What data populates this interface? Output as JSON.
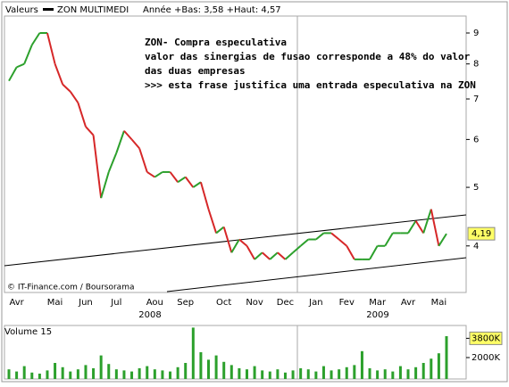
{
  "header": {
    "label": "Valeurs",
    "symbol": "ZON MULTIMEDI",
    "range": "Année +Bas: 3,58 +Haut: 4,57"
  },
  "annotation": [
    "ZON-  Compra especulativa",
    "valor das sinergias de fusao corresponde a 48% do valor",
    "das duas empresas",
    ">>> esta frase justifica uma entrada especulativa na ZON"
  ],
  "credit": "© IT-Finance.com / Boursorama",
  "chart_data": [
    {
      "type": "line",
      "log": true,
      "categories": [
        null,
        "Avr",
        null,
        null,
        null,
        null,
        "Mai",
        null,
        null,
        null,
        "Jun",
        null,
        null,
        null,
        "Jul",
        null,
        null,
        null,
        null,
        "Aou",
        null,
        null,
        null,
        "Sep",
        null,
        null,
        null,
        null,
        "Oct",
        null,
        null,
        null,
        "Nov",
        null,
        null,
        null,
        "Dec",
        null,
        null,
        null,
        "Jan",
        null,
        null,
        null,
        "Fev",
        null,
        null,
        null,
        "Mar",
        null,
        null,
        null,
        "Avr",
        null,
        null,
        null,
        "Mai",
        null
      ],
      "x_group_labels": [
        "2008",
        "2009"
      ],
      "series": [
        {
          "name": "ZON MULTIMEDI",
          "values": [
            7.5,
            7.9,
            8.0,
            8.6,
            9.0,
            9.0,
            8.0,
            7.4,
            7.2,
            6.9,
            6.3,
            6.1,
            4.8,
            5.3,
            5.7,
            6.2,
            6.0,
            5.8,
            5.3,
            5.2,
            5.3,
            5.3,
            5.1,
            5.2,
            5.0,
            5.1,
            4.6,
            4.2,
            4.3,
            3.9,
            4.1,
            4.0,
            3.8,
            3.9,
            3.8,
            3.9,
            3.8,
            3.9,
            4.0,
            4.1,
            4.1,
            4.2,
            4.2,
            4.1,
            4.0,
            3.8,
            3.8,
            3.8,
            4.0,
            4.0,
            4.2,
            4.2,
            4.2,
            4.4,
            4.2,
            4.6,
            4.0,
            4.19
          ]
        }
      ],
      "up_color": "#2ca02c",
      "down_color": "#d62728",
      "last_label": "4,19",
      "ylim": [
        3.35,
        9.6
      ],
      "yticks": [
        4,
        5,
        6,
        7,
        8,
        9
      ]
    },
    {
      "type": "bar",
      "title": "Volume 15",
      "color": "#2ca02c",
      "values": [
        900000,
        700000,
        1200000,
        600000,
        500000,
        800000,
        1500000,
        1100000,
        700000,
        900000,
        1300000,
        1000000,
        2200000,
        1400000,
        900000,
        800000,
        700000,
        1000000,
        1200000,
        900000,
        800000,
        700000,
        1100000,
        1500000,
        4800000,
        2500000,
        1800000,
        2200000,
        1600000,
        1300000,
        1000000,
        900000,
        1200000,
        800000,
        700000,
        900000,
        600000,
        800000,
        1000000,
        900000,
        700000,
        1200000,
        800000,
        900000,
        1100000,
        1300000,
        2600000,
        1000000,
        800000,
        900000,
        700000,
        1200000,
        900000,
        1100000,
        1500000,
        1900000,
        2400000,
        4000000
      ],
      "ylim": [
        0,
        5000000
      ],
      "yticks": [
        {
          "value": 2000000,
          "label": "2000K"
        },
        {
          "value": 3800000,
          "label": "3800K"
        }
      ]
    }
  ]
}
